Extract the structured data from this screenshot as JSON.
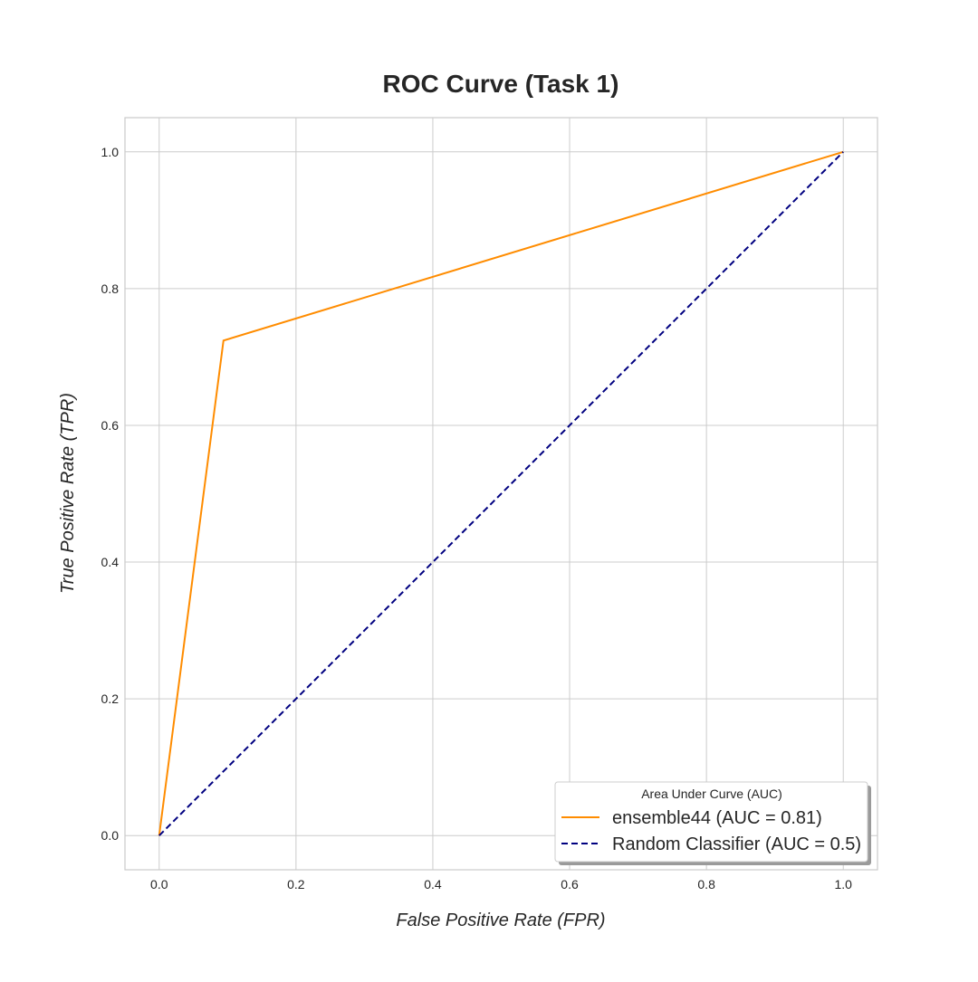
{
  "chart_data": {
    "type": "line",
    "title": "ROC Curve (Task 1)",
    "xlabel": "False Positive Rate (FPR)",
    "ylabel": "True Positive Rate (TPR)",
    "xlim": [
      -0.05,
      1.05
    ],
    "ylim": [
      -0.05,
      1.05
    ],
    "xticks": [
      0.0,
      0.2,
      0.4,
      0.6,
      0.8,
      1.0
    ],
    "yticks": [
      0.0,
      0.2,
      0.4,
      0.6,
      0.8,
      1.0
    ],
    "xtick_labels": [
      "0.0",
      "0.2",
      "0.4",
      "0.6",
      "0.8",
      "1.0"
    ],
    "ytick_labels": [
      "0.0",
      "0.2",
      "0.4",
      "0.6",
      "0.8",
      "1.0"
    ],
    "grid": true,
    "legend": {
      "title": "Area Under Curve (AUC)",
      "placement": "lower-right"
    },
    "series": [
      {
        "name": "ensemble44 (AUC = 0.81)",
        "color": "#ff8c00",
        "style": "solid",
        "x": [
          0.0,
          0.094,
          1.0
        ],
        "y": [
          0.0,
          0.724,
          1.0
        ]
      },
      {
        "name": "Random Classifier (AUC = 0.5)",
        "color": "#000080",
        "style": "dashed",
        "x": [
          0.0,
          1.0
        ],
        "y": [
          0.0,
          1.0
        ]
      }
    ]
  }
}
